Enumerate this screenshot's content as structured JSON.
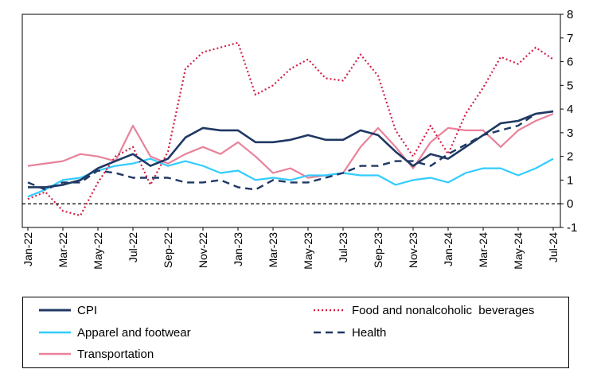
{
  "chart_data": {
    "type": "line",
    "title": "",
    "xlabel": "",
    "ylabel": "",
    "ylim": [
      -1,
      8
    ],
    "yticks": [
      -1,
      0,
      1,
      2,
      3,
      4,
      5,
      6,
      7,
      8
    ],
    "y_axis_side": "right",
    "grid": false,
    "legend_position": "bottom",
    "zero_line": "dashed",
    "x": [
      "Jan-22",
      "Feb-22",
      "Mar-22",
      "Apr-22",
      "May-22",
      "Jun-22",
      "Jul-22",
      "Aug-22",
      "Sep-22",
      "Oct-22",
      "Nov-22",
      "Dec-22",
      "Jan-23",
      "Feb-23",
      "Mar-23",
      "Apr-23",
      "May-23",
      "Jun-23",
      "Jul-23",
      "Aug-23",
      "Sep-23",
      "Oct-23",
      "Nov-23",
      "Dec-23",
      "Jan-24",
      "Feb-24",
      "Mar-24",
      "Apr-24",
      "May-24",
      "Jun-24",
      "Jul-24"
    ],
    "x_tick_labels": [
      "Jan-22",
      "Mar-22",
      "May-22",
      "Jul-22",
      "Sep-22",
      "Nov-22",
      "Jan-23",
      "Mar-23",
      "May-23",
      "Jul-23",
      "Sep-23",
      "Nov-23",
      "Jan-24",
      "Mar-24",
      "May-24",
      "Jul-24"
    ],
    "series": [
      {
        "name": "CPI",
        "color": "#1f3864",
        "style": "solid",
        "values": [
          0.7,
          0.7,
          0.8,
          1.0,
          1.5,
          1.8,
          2.1,
          1.6,
          1.9,
          2.8,
          3.2,
          3.1,
          3.1,
          2.6,
          2.6,
          2.7,
          2.9,
          2.7,
          2.7,
          3.1,
          2.9,
          2.2,
          1.6,
          2.1,
          1.9,
          2.4,
          2.9,
          3.4,
          3.5,
          3.8,
          3.9
        ]
      },
      {
        "name": "Food and nonalcoholic beverages",
        "color": "#d11f46",
        "style": "dotted",
        "values": [
          0.2,
          0.5,
          -0.3,
          -0.5,
          0.9,
          2.0,
          2.4,
          0.8,
          2.2,
          5.7,
          6.4,
          6.6,
          6.8,
          4.6,
          5.0,
          5.7,
          6.1,
          5.3,
          5.2,
          6.3,
          5.4,
          3.1,
          2.0,
          3.3,
          2.1,
          3.8,
          4.9,
          6.2,
          5.9,
          6.6,
          6.1
        ]
      },
      {
        "name": "Apparel and footwear",
        "color": "#33ccff",
        "style": "solid",
        "values": [
          0.3,
          0.6,
          1.0,
          1.1,
          1.4,
          1.6,
          1.7,
          1.9,
          1.6,
          1.8,
          1.6,
          1.3,
          1.4,
          1.0,
          1.1,
          1.0,
          1.2,
          1.2,
          1.3,
          1.2,
          1.2,
          0.8,
          1.0,
          1.1,
          0.9,
          1.3,
          1.5,
          1.5,
          1.2,
          1.5,
          1.9
        ]
      },
      {
        "name": "Health",
        "color": "#1f3864",
        "style": "dashed",
        "values": [
          0.9,
          0.6,
          0.9,
          0.9,
          1.4,
          1.3,
          1.1,
          1.1,
          1.1,
          0.9,
          0.9,
          1.0,
          0.7,
          0.6,
          1.0,
          0.9,
          0.9,
          1.1,
          1.3,
          1.6,
          1.6,
          1.8,
          1.8,
          1.6,
          2.1,
          2.5,
          2.9,
          3.1,
          3.3,
          3.8,
          3.9
        ]
      },
      {
        "name": "Transportation",
        "color": "#e8829a",
        "style": "solid",
        "values": [
          1.6,
          1.7,
          1.8,
          2.1,
          2.0,
          1.8,
          3.3,
          2.0,
          1.7,
          2.1,
          2.4,
          2.1,
          2.6,
          2.0,
          1.3,
          1.5,
          1.1,
          1.2,
          1.3,
          2.4,
          3.2,
          2.4,
          1.5,
          2.6,
          3.2,
          3.1,
          3.1,
          2.4,
          3.1,
          3.5,
          3.8
        ]
      }
    ]
  },
  "legend": {
    "items": [
      {
        "label": "CPI",
        "series": 0
      },
      {
        "label": "Food and nonalcoholic  beverages",
        "series": 1
      },
      {
        "label": "Apparel and footwear",
        "series": 2
      },
      {
        "label": "Health",
        "series": 3
      },
      {
        "label": "Transportation",
        "series": 4
      }
    ]
  }
}
